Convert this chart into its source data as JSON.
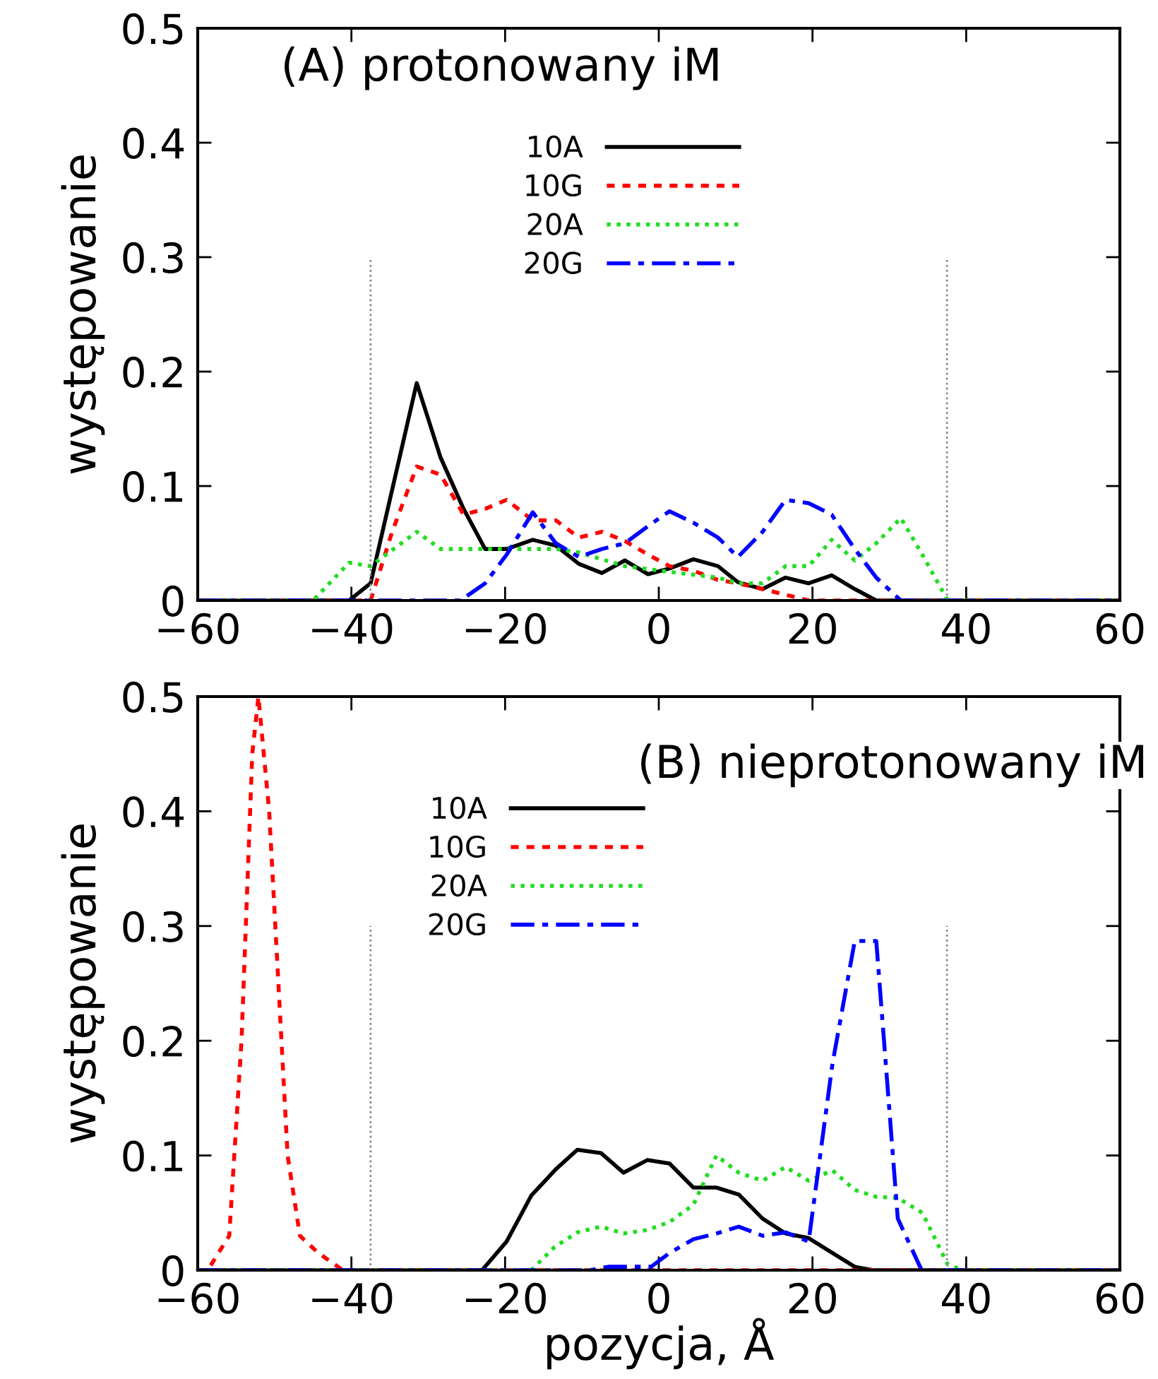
{
  "chart_data": [
    {
      "type": "line",
      "title": "(A) protonowany iM",
      "ylabel": "występowanie",
      "xlim": [
        -60,
        60
      ],
      "ylim": [
        0,
        0.5
      ],
      "xticks": [
        {
          "value": -60,
          "label": "−60"
        },
        {
          "value": -40,
          "label": "−40"
        },
        {
          "value": -20,
          "label": "−20"
        },
        0,
        20,
        40,
        60
      ],
      "yticks": [
        0,
        0.1,
        0.2,
        0.3,
        0.4,
        0.5
      ],
      "grid": false,
      "legend": "top",
      "marker": "none",
      "series": [
        {
          "name": "10A",
          "color": "#000000",
          "line_style": "solid",
          "x": [
            -60,
            -40.3,
            -37.5,
            -31.5,
            -28.4,
            -25.4,
            -22.6,
            -19.8,
            -16.4,
            -13.4,
            -10.4,
            -7.4,
            -4.4,
            -1.4,
            1.4,
            4.5,
            7.7,
            10.3,
            13.5,
            16.5,
            19.5,
            22.5,
            25.5,
            28.3,
            60
          ],
          "values": [
            0,
            0,
            0.015,
            0.19,
            0.125,
            0.08,
            0.045,
            0.045,
            0.053,
            0.048,
            0.032,
            0.024,
            0.035,
            0.023,
            0.028,
            0.036,
            0.03,
            0.016,
            0.01,
            0.02,
            0.015,
            0.022,
            0.01,
            0,
            0
          ]
        },
        {
          "name": "10G",
          "color": "#ff0000",
          "line_style": "dashed",
          "x": [
            -60,
            -37.5,
            -34.7,
            -31.5,
            -28.4,
            -25.4,
            -22.6,
            -19.8,
            -16.4,
            -13.4,
            -10.4,
            -7.4,
            -4.4,
            -1.4,
            1.4,
            4.5,
            7.7,
            10.3,
            13.5,
            16.5,
            19.5,
            60
          ],
          "values": [
            0,
            0,
            0.06,
            0.117,
            0.11,
            0.075,
            0.08,
            0.088,
            0.07,
            0.07,
            0.055,
            0.06,
            0.052,
            0.04,
            0.03,
            0.026,
            0.018,
            0.015,
            0.01,
            0.005,
            0,
            0
          ]
        },
        {
          "name": "20A",
          "color": "#22dd22",
          "line_style": "dotted",
          "x": [
            -60,
            -45,
            -40.3,
            -37.5,
            -31.5,
            -28.4,
            -25.4,
            -19.8,
            -13.4,
            -10.4,
            -4.4,
            1.4,
            7.7,
            10.3,
            13.5,
            16.5,
            19.5,
            22.5,
            25.5,
            28.3,
            31.5,
            34.3,
            37.6,
            60
          ],
          "values": [
            0,
            0,
            0.033,
            0.03,
            0.06,
            0.045,
            0.045,
            0.045,
            0.045,
            0.042,
            0.03,
            0.025,
            0.02,
            0.015,
            0.015,
            0.03,
            0.03,
            0.053,
            0.035,
            0.05,
            0.072,
            0.04,
            0,
            0
          ]
        },
        {
          "name": "20G",
          "color": "#0000ff",
          "line_style": "dashdot",
          "x": [
            -60,
            -25.8,
            -22.6,
            -19.8,
            -16.4,
            -13.4,
            -10.4,
            -7.4,
            -4.4,
            -1.4,
            1.4,
            4.5,
            7.7,
            10.3,
            13.5,
            16.5,
            19.5,
            22.5,
            25.5,
            28.3,
            31.5,
            60
          ],
          "values": [
            0,
            0,
            0.015,
            0.04,
            0.077,
            0.05,
            0.038,
            0.045,
            0.05,
            0.065,
            0.078,
            0.068,
            0.055,
            0.038,
            0.06,
            0.088,
            0.085,
            0.075,
            0.045,
            0.02,
            0,
            0
          ]
        },
        {
          "color": "#888888",
          "line_style": "dotted",
          "x": [
            -37.5,
            -37.5
          ],
          "values": [
            0,
            0.3
          ]
        },
        {
          "color": "#888888",
          "line_style": "dotted",
          "x": [
            37.5,
            37.5
          ],
          "values": [
            0,
            0.3
          ]
        }
      ]
    },
    {
      "type": "line",
      "title": "(B) nieprotonowany iM",
      "ylabel": "występowanie",
      "xlabel": "pozycja, Å",
      "xlim": [
        -60,
        60
      ],
      "ylim": [
        0,
        0.5
      ],
      "xticks": [
        {
          "value": -60,
          "label": "−60"
        },
        {
          "value": -40,
          "label": "−40"
        },
        {
          "value": -20,
          "label": "−20"
        },
        0,
        20,
        40,
        60
      ],
      "yticks": [
        0,
        0.1,
        0.2,
        0.3,
        0.4,
        0.5
      ],
      "grid": false,
      "legend": "left",
      "marker": "none",
      "series": [
        {
          "name": "10A",
          "color": "#000000",
          "line_style": "solid",
          "x": [
            -60,
            -23,
            -19.8,
            -16.6,
            -13.4,
            -10.6,
            -7.5,
            -4.6,
            -1.5,
            1.4,
            4.5,
            7.5,
            10.4,
            13.5,
            16.5,
            19.5,
            22.6,
            25.5,
            27.9,
            60
          ],
          "values": [
            0,
            0,
            0.025,
            0.065,
            0.088,
            0.105,
            0.102,
            0.085,
            0.096,
            0.093,
            0.072,
            0.072,
            0.066,
            0.045,
            0.032,
            0.028,
            0.015,
            0.003,
            0,
            0
          ]
        },
        {
          "name": "10G",
          "color": "#ff0000",
          "line_style": "dashed",
          "x": [
            -60,
            -58.7,
            -55.9,
            -54.3,
            -52.9,
            -52.1,
            -50.7,
            -49.1,
            -48.3,
            -46.7,
            -44.3,
            -41.1,
            60
          ],
          "values": [
            0,
            0,
            0.03,
            0.2,
            0.45,
            0.5,
            0.4,
            0.2,
            0.1,
            0.03,
            0.015,
            0,
            0
          ]
        },
        {
          "name": "20A",
          "color": "#22dd22",
          "line_style": "dotted",
          "x": [
            -60,
            -16.6,
            -13.6,
            -10.6,
            -7.5,
            -4.6,
            -1.5,
            1.4,
            4.5,
            7.5,
            10.4,
            13.5,
            16.5,
            19.5,
            22.6,
            25.5,
            28.3,
            31.1,
            34.3,
            37.6,
            39.6,
            60
          ],
          "values": [
            0,
            0,
            0.02,
            0.033,
            0.038,
            0.032,
            0.035,
            0.042,
            0.057,
            0.1,
            0.085,
            0.078,
            0.09,
            0.078,
            0.087,
            0.07,
            0.064,
            0.063,
            0.05,
            0.005,
            0,
            0
          ]
        },
        {
          "name": "20G",
          "color": "#0000ff",
          "line_style": "dashdot",
          "x": [
            -60,
            -9,
            -6.6,
            -1,
            1.4,
            4.5,
            7.5,
            10.4,
            13.5,
            16.5,
            19.5,
            22.6,
            25.5,
            28.3,
            31.1,
            34.2,
            60
          ],
          "values": [
            0,
            0,
            0.003,
            0.003,
            0.015,
            0.027,
            0.032,
            0.038,
            0.03,
            0.033,
            0.025,
            0.18,
            0.287,
            0.287,
            0.045,
            0,
            0
          ]
        },
        {
          "color": "#888888",
          "line_style": "dotted",
          "x": [
            -37.5,
            -37.5
          ],
          "values": [
            0,
            0.3
          ]
        },
        {
          "color": "#888888",
          "line_style": "dotted",
          "x": [
            37.5,
            37.5
          ],
          "values": [
            0,
            0.3
          ]
        }
      ]
    }
  ]
}
